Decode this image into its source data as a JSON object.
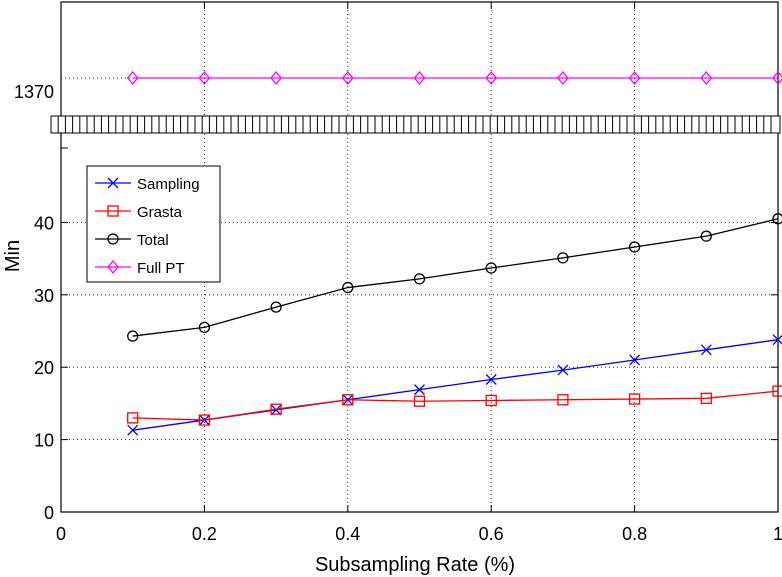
{
  "chart_data": {
    "type": "line",
    "x": [
      0.1,
      0.2,
      0.3,
      0.4,
      0.5,
      0.6,
      0.7,
      0.8,
      0.9,
      1.0
    ],
    "series": [
      {
        "name": "Sampling",
        "color": "#0000ff",
        "marker": "x",
        "values": [
          11.3,
          12.7,
          14.1,
          15.5,
          16.9,
          18.3,
          19.6,
          21.0,
          22.4,
          23.8
        ]
      },
      {
        "name": "Grasta",
        "color": "#ff0000",
        "marker": "square",
        "values": [
          13.0,
          12.7,
          14.2,
          15.5,
          15.3,
          15.4,
          15.5,
          15.6,
          15.7,
          16.7
        ]
      },
      {
        "name": "Total",
        "color": "#000000",
        "marker": "circle",
        "values": [
          24.3,
          25.5,
          28.3,
          31.0,
          32.2,
          33.7,
          35.1,
          36.6,
          38.1,
          40.5
        ]
      },
      {
        "name": "Full PT",
        "color": "#ff00ff",
        "marker": "diamond",
        "break_axis": true,
        "values": [
          1370,
          1370,
          1370,
          1370,
          1370,
          1370,
          1370,
          1370,
          1370,
          1370
        ]
      }
    ],
    "title": "",
    "xlabel": "Subsampling Rate (%)",
    "ylabel": "Min",
    "xlim": [
      0,
      1
    ],
    "ylim": [
      0,
      50
    ],
    "upper_ylim": [
      1365,
      1380
    ],
    "xticks": [
      "0",
      "0.2",
      "0.4",
      "0.6",
      "0.8",
      "1"
    ],
    "yticks": [
      "0",
      "10",
      "20",
      "30",
      "40"
    ],
    "upper_yticks": [
      "1370"
    ],
    "grid": true,
    "axis_break": true,
    "legend_position": "upper-left"
  }
}
